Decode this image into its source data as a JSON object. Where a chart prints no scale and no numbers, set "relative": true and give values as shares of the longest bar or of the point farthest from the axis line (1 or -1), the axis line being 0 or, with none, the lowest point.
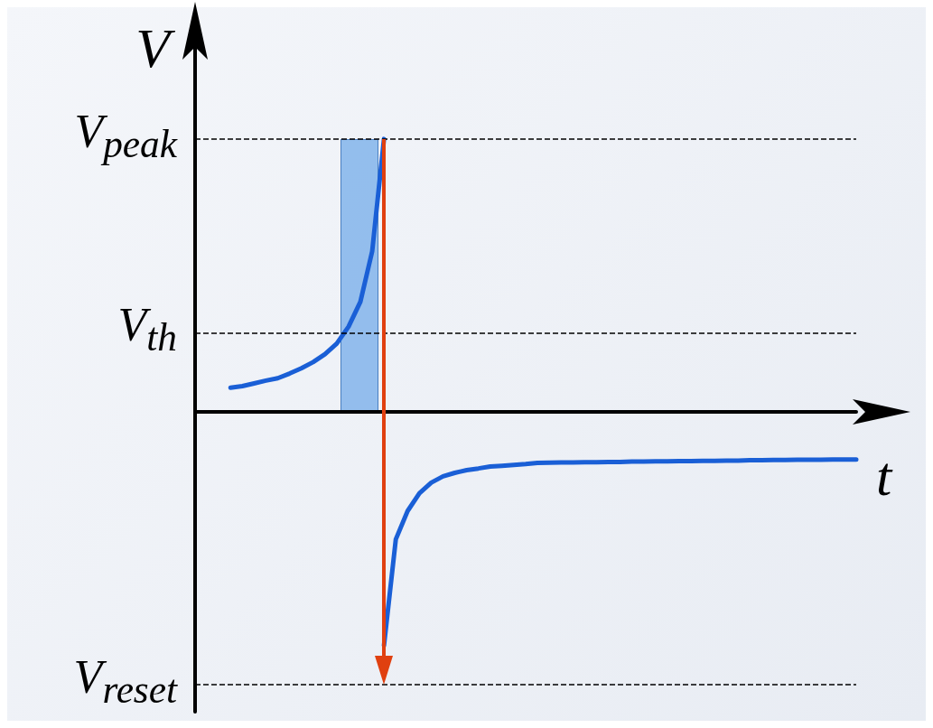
{
  "chart_data": {
    "type": "line",
    "relative": true,
    "xlabel": "t",
    "ylabel": "V",
    "grid": false,
    "marker": "none",
    "line_style": "solid",
    "categories": [
      null,
      null,
      null,
      null,
      null,
      null,
      null,
      null,
      null,
      null,
      null,
      null,
      null,
      null,
      null,
      null,
      null,
      null,
      null,
      null,
      null,
      null,
      null,
      null,
      null,
      null,
      null,
      null,
      null,
      null,
      null,
      null,
      null,
      null,
      null,
      null,
      null,
      null,
      null,
      null,
      null,
      null,
      null,
      null,
      null,
      null,
      null,
      null,
      null,
      null,
      null,
      null,
      null,
      null,
      null,
      null,
      null
    ],
    "series": [
      {
        "color": "#1a5fd6",
        "values": [
          null,
          null,
          null,
          0.088,
          0.094,
          0.104,
          0.114,
          0.123,
          0.14,
          0.159,
          0.182,
          0.211,
          0.25,
          0.312,
          0.403,
          0.588,
          1,
          null,
          null,
          null,
          null,
          null,
          null,
          null,
          null,
          null,
          null,
          null,
          null,
          null,
          null,
          null,
          null,
          null,
          null,
          null,
          null,
          null,
          null,
          null,
          null,
          null,
          null,
          null,
          null,
          null,
          null,
          null,
          null,
          null,
          null,
          null,
          null,
          null,
          null,
          null,
          null
        ]
      },
      {
        "color": "#1a5fd6",
        "values": [
          null,
          null,
          null,
          null,
          null,
          null,
          null,
          null,
          null,
          null,
          null,
          null,
          null,
          null,
          null,
          null,
          -0.857,
          -0.468,
          -0.364,
          -0.299,
          -0.26,
          -0.237,
          -0.224,
          -0.214,
          -0.208,
          -0.201,
          -0.198,
          -0.195,
          -0.192,
          -0.188,
          -0.187,
          -0.186,
          -0.186,
          -0.185,
          -0.185,
          -0.184,
          -0.184,
          -0.183,
          -0.183,
          -0.182,
          -0.182,
          -0.181,
          -0.181,
          -0.18,
          -0.18,
          -0.179,
          -0.179,
          -0.178,
          -0.178,
          -0.177,
          -0.177,
          -0.176,
          -0.176,
          -0.176,
          -0.175,
          -0.175,
          -0.175
        ]
      }
    ],
    "ref_lines": [
      {
        "axis": "y",
        "value": 1,
        "label": "V$_{peak}$",
        "line_style": "dashed",
        "color": "#000000"
      },
      {
        "axis": "y",
        "value": 0.29,
        "label": "V$_{th}$",
        "line_style": "dashed",
        "color": "#000000"
      },
      {
        "axis": "y",
        "value": -1,
        "label": "V$_{reset}$",
        "line_style": "dashed",
        "color": "#000000"
      }
    ]
  }
}
